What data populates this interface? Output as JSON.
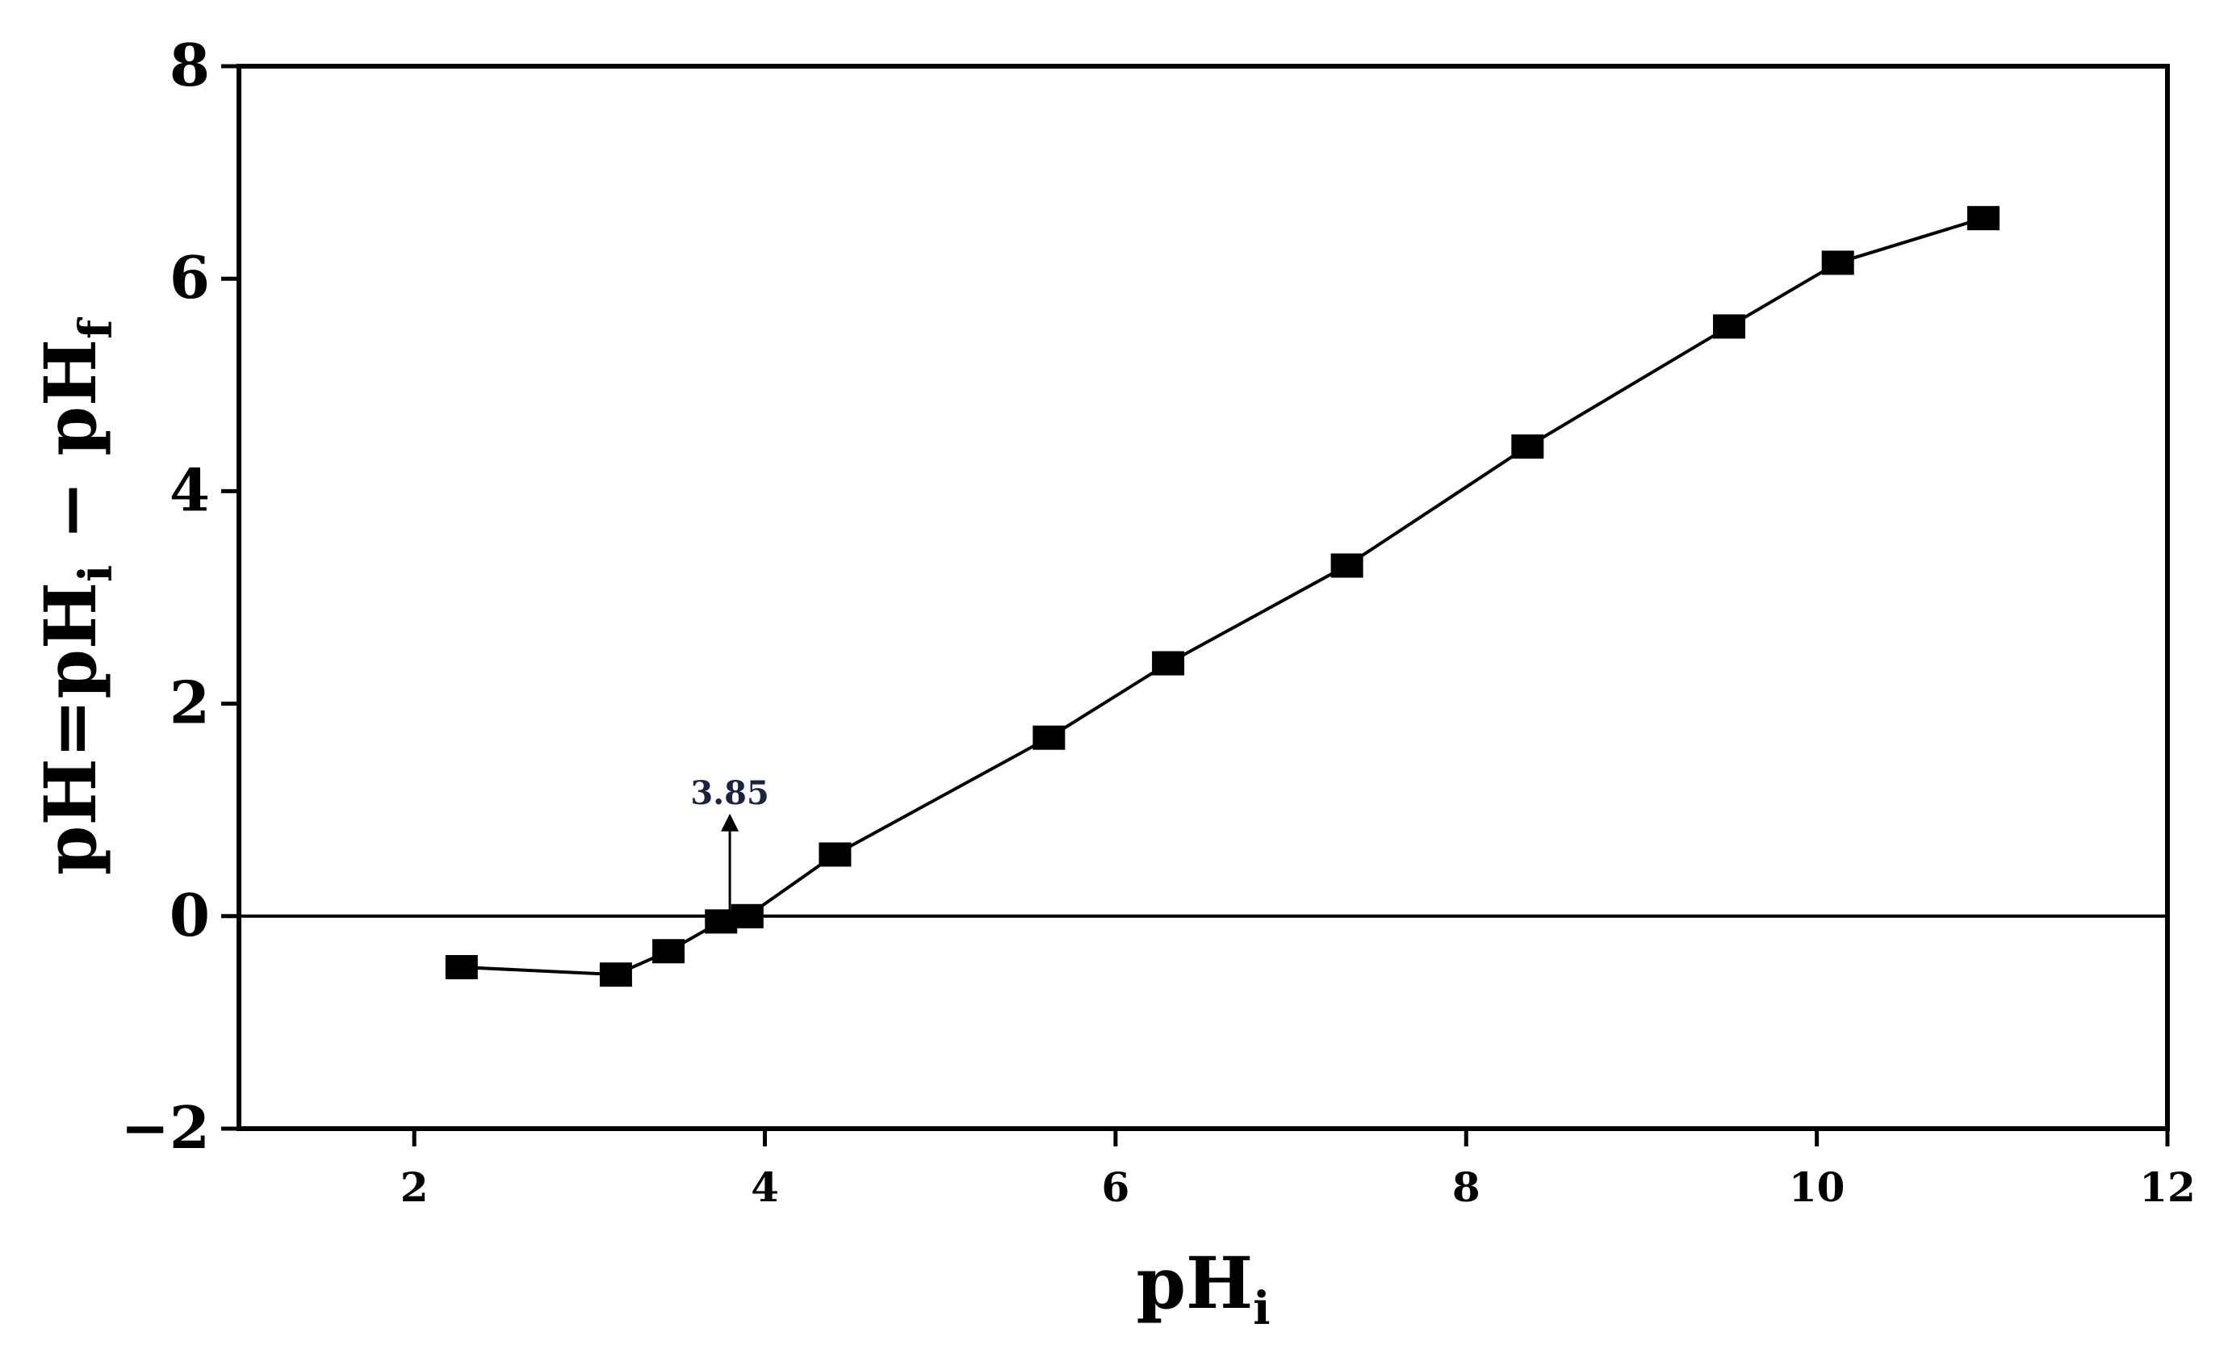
{
  "chart_data": {
    "type": "line",
    "title": "",
    "xlabel": {
      "main": "pH",
      "sub": "i"
    },
    "ylabel": {
      "p1": "pH=pH",
      "s1": "i",
      "p2": " − pH",
      "s2": "f"
    },
    "xlim": [
      1,
      12
    ],
    "ylim": [
      -2,
      8
    ],
    "x_ticks": [
      {
        "value": 2,
        "label": "2"
      },
      {
        "value": 4,
        "label": "4"
      },
      {
        "value": 6,
        "label": "6"
      },
      {
        "value": 8,
        "label": "8"
      },
      {
        "value": 10,
        "label": "10"
      },
      {
        "value": 12,
        "label": "12"
      }
    ],
    "y_ticks": [
      {
        "value": -2,
        "label": "−2"
      },
      {
        "value": 0,
        "label": "0"
      },
      {
        "value": 2,
        "label": "2"
      },
      {
        "value": 4,
        "label": "4"
      },
      {
        "value": 6,
        "label": "6"
      },
      {
        "value": 8,
        "label": "8"
      }
    ],
    "series": [
      {
        "marker": "square",
        "color": "#000000",
        "x": [
          2.27,
          3.15,
          3.45,
          3.75,
          3.9,
          4.4,
          5.62,
          6.3,
          7.32,
          8.35,
          9.5,
          10.12,
          10.95
        ],
        "y": [
          -0.48,
          -0.55,
          -0.33,
          -0.05,
          0.0,
          0.58,
          1.68,
          2.38,
          3.3,
          4.42,
          5.55,
          6.15,
          6.57
        ]
      }
    ],
    "reference_line": {
      "y": 0
    },
    "annotations": [
      {
        "text": "3.85",
        "x": 3.8,
        "y_from": 0.0,
        "y_to": 0.95
      }
    ],
    "grid": false,
    "legend": "none"
  }
}
